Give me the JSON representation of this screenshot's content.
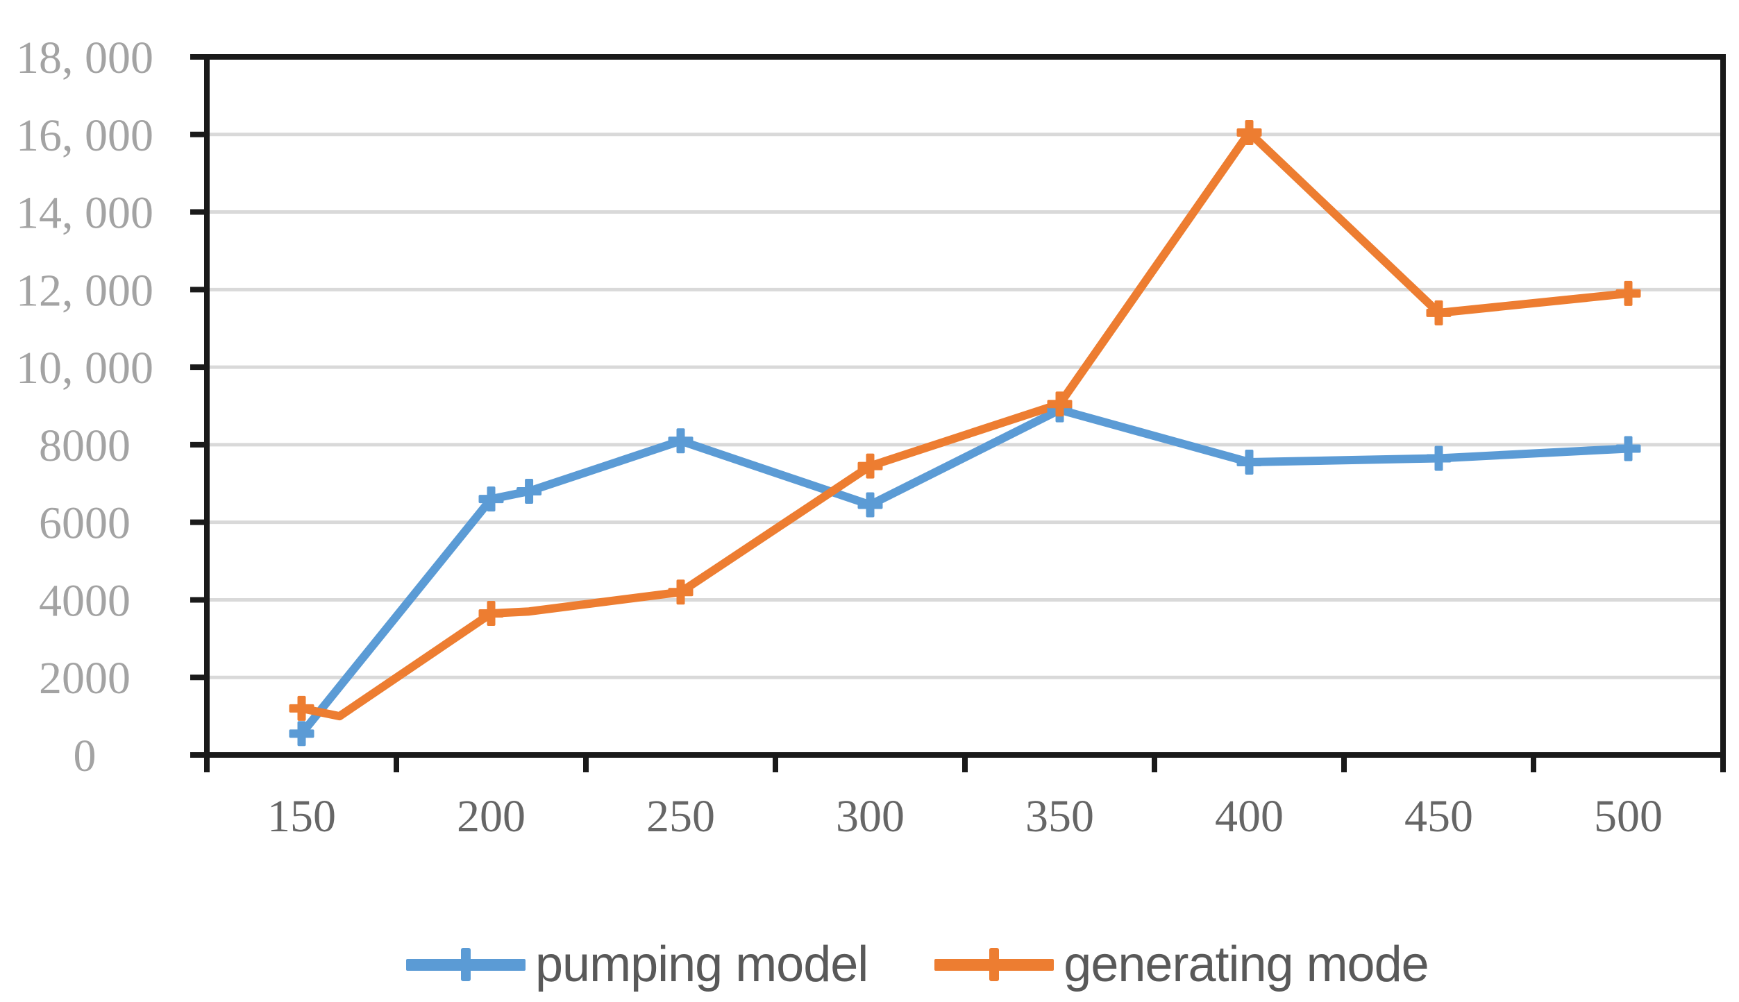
{
  "page": {
    "background": "#ffffff"
  },
  "chart_data": {
    "type": "line",
    "title": "",
    "xlabel": "",
    "ylabel": "",
    "x_axis": {
      "xlim": [
        125,
        525
      ],
      "tick_values": [
        150,
        200,
        250,
        300,
        350,
        400,
        450,
        500
      ],
      "tick_labels": [
        "150",
        "200",
        "250",
        "300",
        "350",
        "400",
        "450",
        "500"
      ],
      "boundary_tick_step": 50
    },
    "y_axis": {
      "ylim": [
        0,
        18000
      ],
      "tick_values": [
        0,
        2000,
        4000,
        6000,
        8000,
        10000,
        12000,
        14000,
        16000,
        18000
      ],
      "tick_labels": [
        "0",
        "2000",
        "4000",
        "6000",
        "8000",
        "10, 000",
        "12, 000",
        "14, 000",
        "16, 000",
        "18, 000"
      ]
    },
    "grid": {
      "horizontal": true,
      "vertical": false,
      "color": "#D9D9D9"
    },
    "legend": {
      "position": "bottom",
      "entries": [
        "pumping model",
        "generating mode"
      ]
    },
    "series": [
      {
        "name": "pumping model",
        "color": "#5B9BD5",
        "marker": "plus",
        "points": [
          {
            "x": 150,
            "y": 550,
            "marker": true
          },
          {
            "x": 200,
            "y": 6600,
            "marker": true
          },
          {
            "x": 210,
            "y": 6800,
            "marker": true
          },
          {
            "x": 250,
            "y": 8100,
            "marker": true
          },
          {
            "x": 300,
            "y": 6450,
            "marker": true
          },
          {
            "x": 350,
            "y": 8900,
            "marker": true
          },
          {
            "x": 400,
            "y": 7550,
            "marker": true
          },
          {
            "x": 450,
            "y": 7650,
            "marker": true
          },
          {
            "x": 500,
            "y": 7900,
            "marker": true
          }
        ]
      },
      {
        "name": "generating mode",
        "color": "#ED7D31",
        "marker": "plus",
        "points": [
          {
            "x": 150,
            "y": 1200,
            "marker": true
          },
          {
            "x": 160,
            "y": 1000,
            "marker": false
          },
          {
            "x": 200,
            "y": 3650,
            "marker": true
          },
          {
            "x": 210,
            "y": 3700,
            "marker": false
          },
          {
            "x": 250,
            "y": 4200,
            "marker": true
          },
          {
            "x": 300,
            "y": 7450,
            "marker": true
          },
          {
            "x": 350,
            "y": 9050,
            "marker": true
          },
          {
            "x": 400,
            "y": 16050,
            "marker": true
          },
          {
            "x": 450,
            "y": 11400,
            "marker": true
          },
          {
            "x": 500,
            "y": 11900,
            "marker": true
          }
        ]
      }
    ],
    "style": {
      "axis_line_color": "#1a1a1a",
      "y_tick_label_color": "#A3A3A3",
      "x_tick_label_color": "#666666",
      "legend_text_color": "#595959",
      "plot_border": true
    }
  }
}
